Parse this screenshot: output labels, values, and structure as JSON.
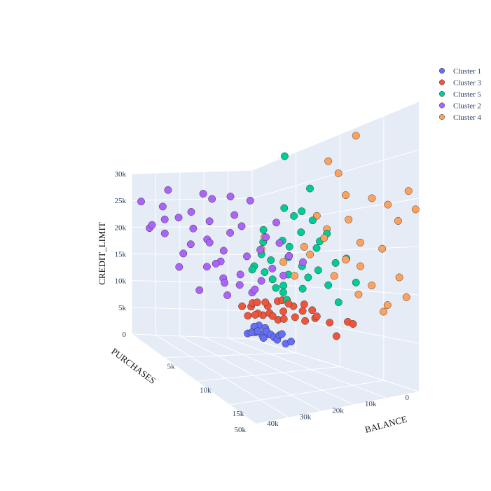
{
  "chart_data": {
    "type": "scatter",
    "projection": "3d",
    "axes": {
      "x": {
        "label": "BALANCE",
        "range": [
          0,
          19000
        ],
        "ticks": [
          5000,
          10000,
          15000
        ],
        "tick_labels": [
          "5k",
          "10k",
          "15k"
        ]
      },
      "y": {
        "label": "PURCHASES",
        "range": [
          0,
          50000
        ],
        "ticks": [
          0,
          10000,
          20000,
          30000,
          40000,
          50000
        ],
        "tick_labels": [
          "0",
          "10k",
          "20k",
          "30k",
          "40k",
          "50k"
        ]
      },
      "z": {
        "label": "CREDIT_LIMIT",
        "range": [
          0,
          30000
        ],
        "ticks": [
          0,
          5000,
          10000,
          15000,
          20000,
          25000,
          30000
        ],
        "tick_labels": [
          "0",
          "5k",
          "10k",
          "15k",
          "20k",
          "25k",
          "30k"
        ]
      }
    },
    "legend_position": "top-right",
    "grid": true,
    "series": [
      {
        "name": "Cluster 1",
        "color": "#636efa",
        "points": [
          [
            900,
            3500,
            1500
          ],
          [
            1200,
            2500,
            1800
          ],
          [
            600,
            4000,
            1200
          ],
          [
            1500,
            3000,
            2000
          ],
          [
            800,
            2000,
            2500
          ],
          [
            1800,
            1800,
            1000
          ],
          [
            2100,
            1500,
            2200
          ],
          [
            700,
            1200,
            1500
          ],
          [
            1000,
            800,
            2800
          ],
          [
            2400,
            1000,
            1800
          ],
          [
            1300,
            600,
            1300
          ],
          [
            500,
            900,
            2000
          ],
          [
            2700,
            700,
            1500
          ],
          [
            1600,
            400,
            2600
          ],
          [
            3000,
            500,
            1200
          ],
          [
            2000,
            300,
            1700
          ],
          [
            3500,
            400,
            2300
          ],
          [
            4000,
            600,
            1000
          ],
          [
            3200,
            300,
            2000
          ],
          [
            4500,
            200,
            1500
          ]
        ]
      },
      {
        "name": "Cluster 3",
        "color": "#ef553b",
        "points": [
          [
            1000,
            4000,
            6000
          ],
          [
            1500,
            3000,
            5000
          ],
          [
            2000,
            5000,
            7000
          ],
          [
            2500,
            2500,
            6500
          ],
          [
            3000,
            3500,
            5500
          ],
          [
            3500,
            2000,
            7500
          ],
          [
            1200,
            6000,
            4500
          ],
          [
            4000,
            1500,
            6000
          ],
          [
            4500,
            3000,
            5000
          ],
          [
            5000,
            1000,
            7000
          ],
          [
            800,
            7000,
            6000
          ],
          [
            1800,
            2000,
            4800
          ],
          [
            2800,
            4500,
            7200
          ],
          [
            5500,
            2000,
            5500
          ],
          [
            6000,
            800,
            6500
          ],
          [
            3300,
            1200,
            4500
          ],
          [
            4200,
            2600,
            7800
          ],
          [
            2200,
            6500,
            5000
          ],
          [
            6500,
            1500,
            5200
          ],
          [
            7000,
            500,
            6800
          ],
          [
            5200,
            3500,
            7500
          ],
          [
            7500,
            1000,
            5800
          ],
          [
            8000,
            2000,
            6200
          ],
          [
            3800,
            5000,
            5300
          ],
          [
            9000,
            500,
            5500
          ],
          [
            6800,
            2800,
            7700
          ],
          [
            11000,
            300,
            6000
          ],
          [
            10000,
            1200,
            4000
          ],
          [
            12000,
            1500,
            6000
          ],
          [
            1600,
            5500,
            6800
          ]
        ]
      },
      {
        "name": "Cluster 5",
        "color": "#00cc96",
        "points": [
          [
            2000,
            2000,
            12000
          ],
          [
            3000,
            3000,
            14000
          ],
          [
            4000,
            1500,
            10000
          ],
          [
            5000,
            2500,
            16000
          ],
          [
            3500,
            4000,
            11000
          ],
          [
            6000,
            1000,
            13000
          ],
          [
            2500,
            5000,
            15000
          ],
          [
            7000,
            2000,
            11500
          ],
          [
            4500,
            3500,
            17000
          ],
          [
            8000,
            1500,
            12500
          ],
          [
            3000,
            1000,
            9500
          ],
          [
            5500,
            4500,
            14500
          ],
          [
            6500,
            3000,
            18000
          ],
          [
            9000,
            1000,
            10500
          ],
          [
            7500,
            500,
            15500
          ],
          [
            2200,
            3200,
            19000
          ],
          [
            5000,
            800,
            20500
          ],
          [
            8500,
            2500,
            16500
          ],
          [
            10000,
            1500,
            13500
          ],
          [
            4200,
            2200,
            9000
          ],
          [
            6200,
            1800,
            21000
          ],
          [
            9500,
            3000,
            17500
          ],
          [
            3800,
            500,
            22000
          ],
          [
            7000,
            4000,
            10000
          ],
          [
            11000,
            800,
            14000
          ],
          [
            5800,
            5500,
            12000
          ],
          [
            1500,
            4500,
            13000
          ],
          [
            8000,
            3500,
            19500
          ],
          [
            12000,
            500,
            11000
          ],
          [
            3000,
            6000,
            17000
          ],
          [
            6800,
            700,
            24000
          ],
          [
            4000,
            1000,
            30000
          ],
          [
            2000,
            7000,
            12500
          ],
          [
            10500,
            2000,
            8500
          ],
          [
            4800,
            2800,
            8000
          ]
        ]
      },
      {
        "name": "Cluster 2",
        "color": "#ab63fa",
        "points": [
          [
            2000,
            12000,
            10000
          ],
          [
            3000,
            15000,
            12000
          ],
          [
            1500,
            18000,
            14000
          ],
          [
            4000,
            10000,
            11000
          ],
          [
            2500,
            20000,
            16000
          ],
          [
            1000,
            22000,
            13000
          ],
          [
            3500,
            14000,
            15000
          ],
          [
            5000,
            9000,
            13000
          ],
          [
            2000,
            25000,
            18000
          ],
          [
            1200,
            16000,
            11000
          ],
          [
            4500,
            12000,
            16000
          ],
          [
            800,
            28000,
            17000
          ],
          [
            3000,
            19000,
            19000
          ],
          [
            6000,
            8000,
            12000
          ],
          [
            1800,
            30000,
            20000
          ],
          [
            2800,
            24000,
            14000
          ],
          [
            700,
            20000,
            21000
          ],
          [
            5500,
            13000,
            18000
          ],
          [
            1500,
            35000,
            22000
          ],
          [
            3800,
            17000,
            20000
          ],
          [
            600,
            38000,
            19000
          ],
          [
            2200,
            32000,
            23000
          ],
          [
            7000,
            9000,
            15000
          ],
          [
            4200,
            21000,
            22000
          ],
          [
            1000,
            40000,
            24000
          ],
          [
            3300,
            27000,
            25000
          ],
          [
            500,
            44000,
            20000
          ],
          [
            6500,
            11000,
            17000
          ],
          [
            2500,
            36000,
            16000
          ],
          [
            1300,
            26000,
            9000
          ],
          [
            4800,
            15000,
            10000
          ],
          [
            900,
            33000,
            13000
          ],
          [
            3600,
            23000,
            11000
          ],
          [
            2000,
            42000,
            22000
          ],
          [
            5200,
            18000,
            24000
          ],
          [
            1600,
            46000,
            21000
          ],
          [
            8000,
            7000,
            14000
          ],
          [
            2800,
            29000,
            26000
          ],
          [
            700,
            48000,
            25000
          ],
          [
            4000,
            30000,
            18000
          ],
          [
            1100,
            14000,
            8000
          ],
          [
            3200,
            11000,
            9000
          ],
          [
            5800,
            10000,
            20000
          ],
          [
            2400,
            17000,
            25000
          ],
          [
            1400,
            39000,
            27000
          ]
        ]
      },
      {
        "name": "Cluster 4",
        "color": "#ffa15a",
        "points": [
          [
            8000,
            2000,
            20000
          ],
          [
            9000,
            1500,
            18000
          ],
          [
            11000,
            1000,
            22000
          ],
          [
            12000,
            3000,
            19000
          ],
          [
            10000,
            500,
            25000
          ],
          [
            13000,
            2000,
            16000
          ],
          [
            14000,
            1000,
            21000
          ],
          [
            9500,
            4000,
            17000
          ],
          [
            15000,
            500,
            15000
          ],
          [
            11500,
            2500,
            14000
          ],
          [
            16000,
            1500,
            20000
          ],
          [
            7500,
            5000,
            16000
          ],
          [
            12500,
            500,
            13000
          ],
          [
            17000,
            1000,
            18000
          ],
          [
            10500,
            3500,
            12000
          ],
          [
            14500,
            2500,
            11000
          ],
          [
            18000,
            500,
            21000
          ],
          [
            8500,
            6000,
            15000
          ],
          [
            13500,
            4000,
            10000
          ],
          [
            19000,
            1000,
            19000
          ],
          [
            16500,
            3000,
            9000
          ],
          [
            6000,
            8000,
            14000
          ],
          [
            15500,
            1500,
            8000
          ],
          [
            4000,
            10000,
            16000
          ],
          [
            7000,
            7000,
            12000
          ],
          [
            17500,
            2000,
            12000
          ],
          [
            18500,
            2500,
            10000
          ],
          [
            5000,
            12000,
            18000
          ],
          [
            9000,
            1000,
            27000
          ],
          [
            12000,
            500,
            29000
          ]
        ]
      }
    ]
  }
}
